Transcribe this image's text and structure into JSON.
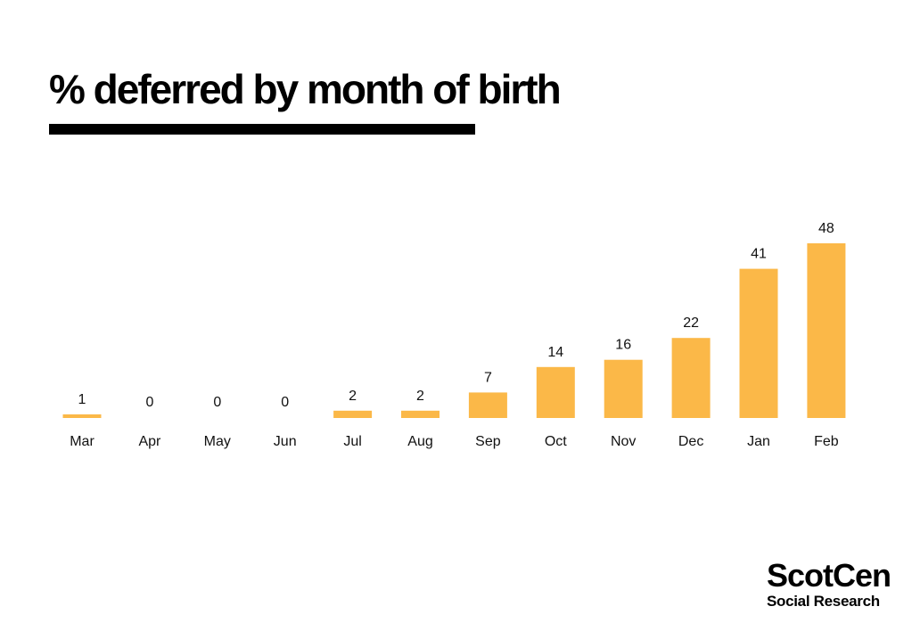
{
  "title": "% deferred by month of birth",
  "brand": {
    "name": "ScotCen",
    "tagline": "Social Research"
  },
  "colors": {
    "bar": "#FBB848",
    "text": "#111111",
    "title": "#000000"
  },
  "chart_data": {
    "type": "bar",
    "title": "% deferred by month of birth",
    "xlabel": "",
    "ylabel": "",
    "categories": [
      "Mar",
      "Apr",
      "May",
      "Jun",
      "Jul",
      "Aug",
      "Sep",
      "Oct",
      "Nov",
      "Dec",
      "Jan",
      "Feb"
    ],
    "values": [
      1,
      0,
      0,
      0,
      2,
      2,
      7,
      14,
      16,
      22,
      41,
      48
    ],
    "ylim": [
      0,
      48
    ],
    "grid": false,
    "legend": "none",
    "data_labels": true
  }
}
